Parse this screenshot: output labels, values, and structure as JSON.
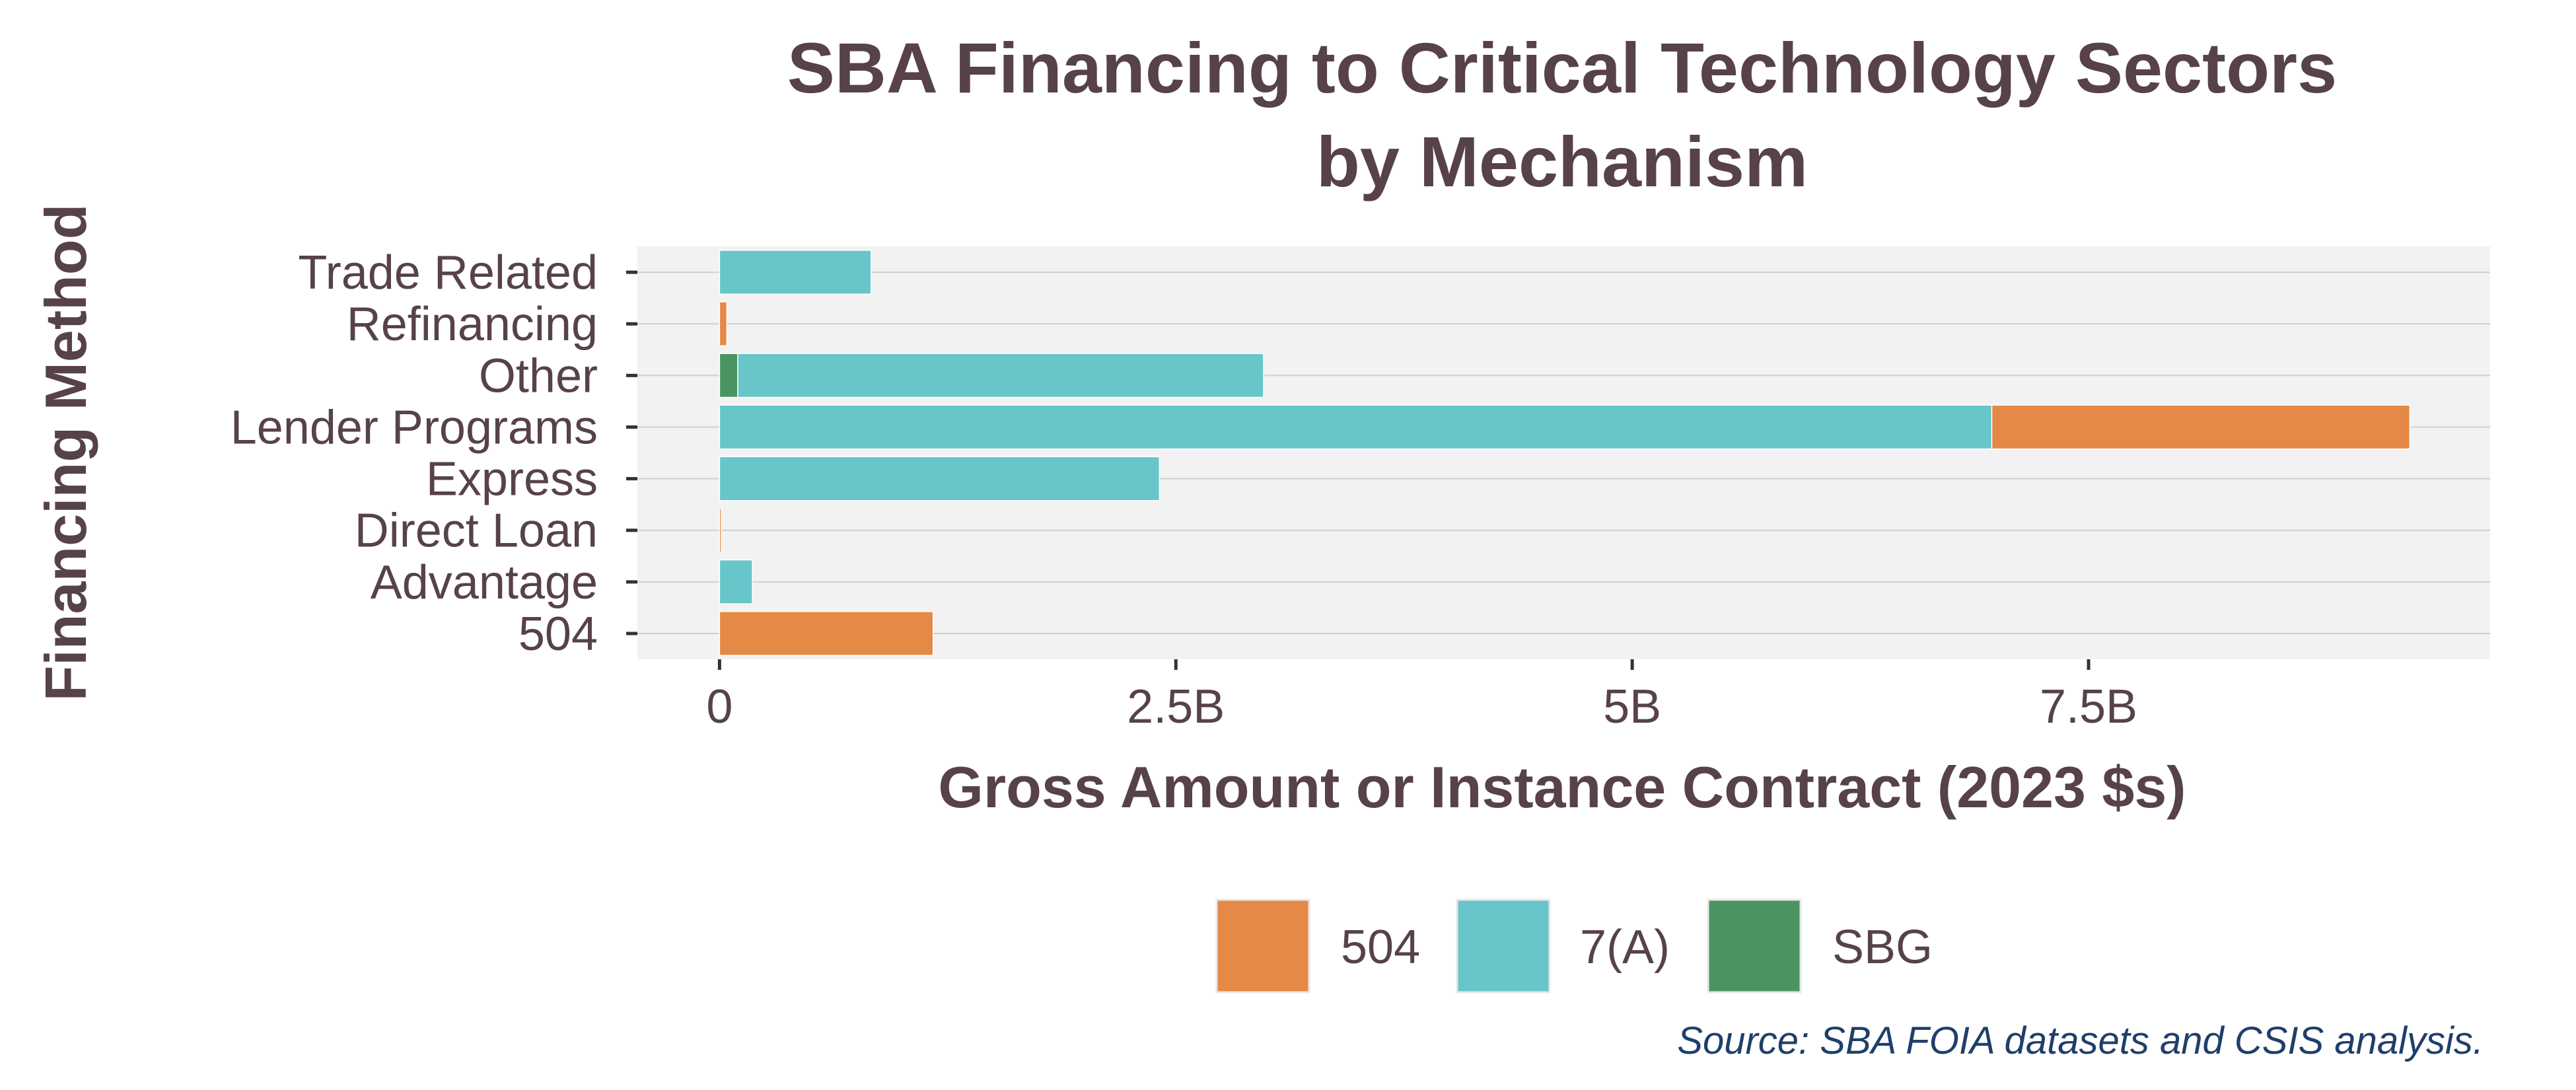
{
  "chart_data": {
    "type": "bar",
    "orientation": "horizontal",
    "stacked": true,
    "title": "SBA Financing to Critical Technology Sectors",
    "subtitle": "by Mechanism",
    "xlabel": "Gross Amount or Instance Contract (2023 $s)",
    "ylabel": "Financing Method",
    "categories": [
      "504",
      "Advantage",
      "Direct Loan",
      "Express",
      "Lender Programs",
      "Other",
      "Refinancing",
      "Trade Related"
    ],
    "xlim": [
      -450000000,
      9700000000
    ],
    "xticks": [
      0,
      2500000000,
      5000000000,
      7500000000
    ],
    "xtick_labels": [
      "0",
      "2.5B",
      "5B",
      "7.5B"
    ],
    "grid": true,
    "legend_position": "bottom",
    "series": [
      {
        "name": "SBG",
        "color": "#4b9461",
        "values": [
          0,
          0,
          0,
          0,
          0,
          100000000,
          0,
          0
        ]
      },
      {
        "name": "7(A)",
        "color": "#68c6ca",
        "values": [
          0,
          180000000,
          0,
          2410000000,
          6970000000,
          2880000000,
          0,
          830000000
        ]
      },
      {
        "name": "504",
        "color": "#e58946",
        "values": [
          1170000000,
          0,
          10000000,
          0,
          2290000000,
          0,
          40000000,
          0
        ]
      }
    ],
    "legend_order": [
      "504",
      "7(A)",
      "SBG"
    ],
    "caption": "Source:  SBA FOIA datasets and CSIS analysis."
  }
}
